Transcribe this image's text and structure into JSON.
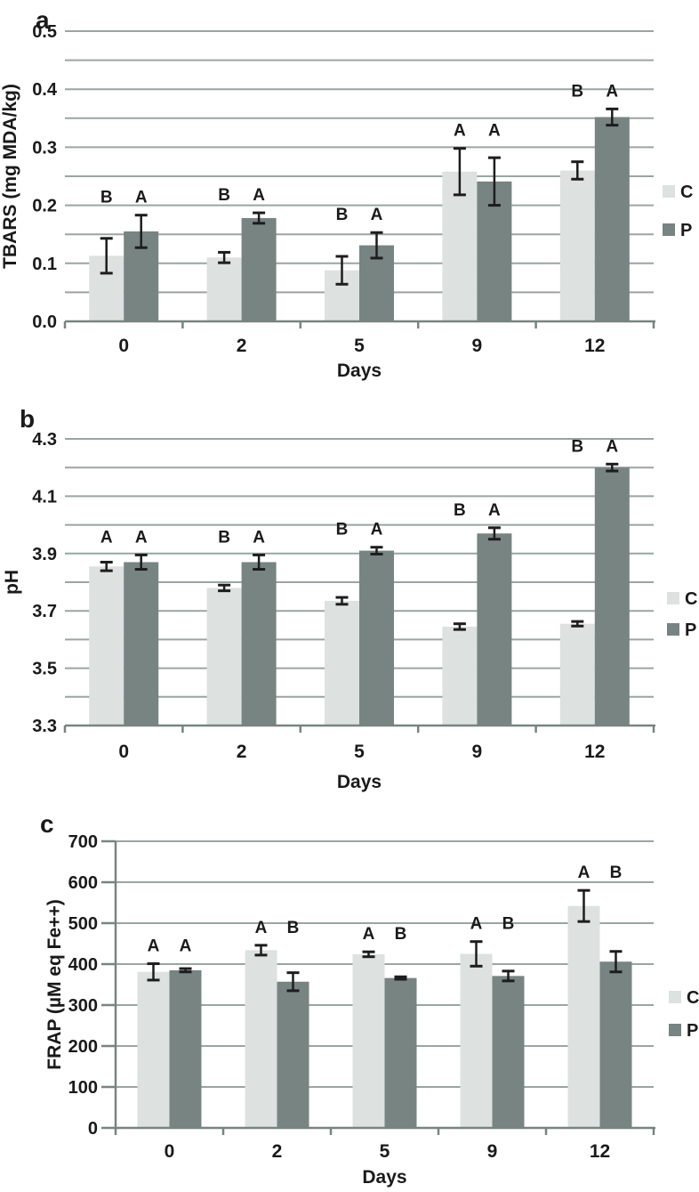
{
  "colors": {
    "series_c": "#dde1e0",
    "series_p": "#778481",
    "gridline": "#9aa5a2",
    "axis": "#78847f",
    "error_bar": "#1d1d1d",
    "text": "#1a1a1a",
    "background": "#ffffff"
  },
  "chart_data": [
    {
      "panel_label": "a",
      "type": "bar",
      "title": "",
      "xlabel": "Days",
      "ylabel": "TBARS (mg MDA/kg)",
      "categories": [
        "0",
        "2",
        "5",
        "9",
        "12"
      ],
      "ylim": [
        0,
        0.5
      ],
      "grid_step": 0.05,
      "y_tick_values": [
        0,
        0.1,
        0.2,
        0.3,
        0.4,
        0.5
      ],
      "y_tick_labels": [
        "0.0",
        "0.1",
        "0.2",
        "0.3",
        "0.4",
        "0.5"
      ],
      "legend_position": "right",
      "grid": true,
      "series": [
        {
          "name": "C",
          "color_key": "series_c",
          "values": [
            0.113,
            0.11,
            0.088,
            0.258,
            0.26
          ],
          "errors": [
            0.03,
            0.009,
            0.024,
            0.04,
            0.015
          ]
        },
        {
          "name": "P",
          "color_key": "series_p",
          "values": [
            0.155,
            0.178,
            0.131,
            0.241,
            0.352
          ],
          "errors": [
            0.028,
            0.009,
            0.022,
            0.041,
            0.014
          ]
        }
      ],
      "letters": [
        [
          "B",
          "A"
        ],
        [
          "B",
          "A"
        ],
        [
          "B",
          "A"
        ],
        [
          "A",
          "A"
        ],
        [
          "B",
          "A"
        ]
      ]
    },
    {
      "panel_label": "b",
      "type": "bar",
      "title": "",
      "xlabel": "Days",
      "ylabel": "pH",
      "categories": [
        "0",
        "2",
        "5",
        "9",
        "12"
      ],
      "ylim": [
        3.3,
        4.3
      ],
      "grid_step": 0.1,
      "y_tick_values": [
        3.3,
        3.5,
        3.7,
        3.9,
        4.1,
        4.3
      ],
      "y_tick_labels": [
        "3.3",
        "3.5",
        "3.7",
        "3.9",
        "4.1",
        "4.3"
      ],
      "legend_position": "right",
      "grid": true,
      "series": [
        {
          "name": "C",
          "color_key": "series_c",
          "values": [
            3.855,
            3.78,
            3.735,
            3.645,
            3.655
          ],
          "errors": [
            0.015,
            0.01,
            0.012,
            0.01,
            0.008
          ]
        },
        {
          "name": "P",
          "color_key": "series_p",
          "values": [
            3.87,
            3.87,
            3.91,
            3.97,
            4.2
          ],
          "errors": [
            0.025,
            0.025,
            0.012,
            0.02,
            0.012
          ]
        }
      ],
      "letters": [
        [
          "A",
          "A"
        ],
        [
          "B",
          "A"
        ],
        [
          "B",
          "A"
        ],
        [
          "B",
          "A"
        ],
        [
          "B",
          "A"
        ]
      ]
    },
    {
      "panel_label": "c",
      "type": "bar",
      "title": "",
      "xlabel": "Days",
      "ylabel": "FRAP (µM eq Fe++)",
      "categories": [
        "0",
        "2",
        "5",
        "9",
        "12"
      ],
      "ylim": [
        0,
        700
      ],
      "grid_step": 100,
      "y_tick_values": [
        0,
        100,
        200,
        300,
        400,
        500,
        600,
        700
      ],
      "y_tick_labels": [
        "0",
        "100",
        "200",
        "300",
        "400",
        "500",
        "600",
        "700"
      ],
      "legend_position": "right",
      "grid": true,
      "series": [
        {
          "name": "C",
          "color_key": "series_c",
          "values": [
            381,
            434,
            424,
            425,
            542
          ],
          "errors": [
            20,
            12,
            6,
            30,
            38
          ]
        },
        {
          "name": "P",
          "color_key": "series_p",
          "values": [
            385,
            357,
            366,
            371,
            406
          ],
          "errors": [
            4,
            22,
            3,
            12,
            25
          ]
        }
      ],
      "letters": [
        [
          "A",
          "A"
        ],
        [
          "A",
          "B"
        ],
        [
          "A",
          "B"
        ],
        [
          "A",
          "B"
        ],
        [
          "A",
          "B"
        ]
      ]
    }
  ]
}
